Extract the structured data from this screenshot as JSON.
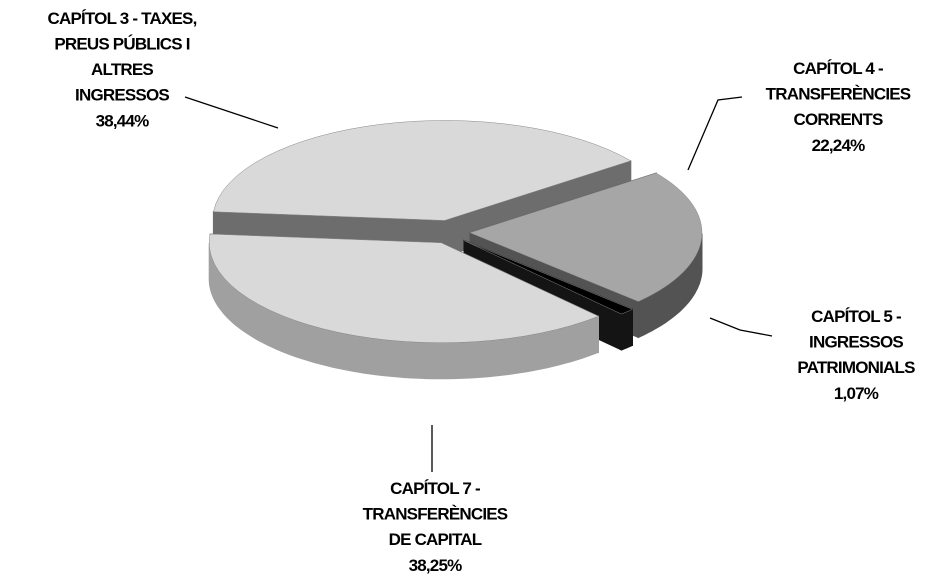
{
  "chart_data": {
    "type": "pie",
    "categories": [
      "CAPÍTOL 3 - TAXES,\nPREUS  PÚBLICS I\nALTRES\nINGRESSOS",
      "CAPÍTOL 4 -\nTRANSFERÈNCIES\nCORRENTS",
      "CAPÍTOL 5 -\nINGRESSOS\nPATRIMONIALS",
      "CAPÍTOL 7 -\nTRANSFERÈNCIES\nDE CAPITAL"
    ],
    "values": [
      38.44,
      22.24,
      1.07,
      38.25
    ],
    "value_labels": [
      "38,44%",
      "22,24%",
      "1,07%",
      "38,25%"
    ],
    "colors": [
      "#d9d9d9",
      "#a6a6a6",
      "#000000",
      "#d9d9d9"
    ]
  }
}
